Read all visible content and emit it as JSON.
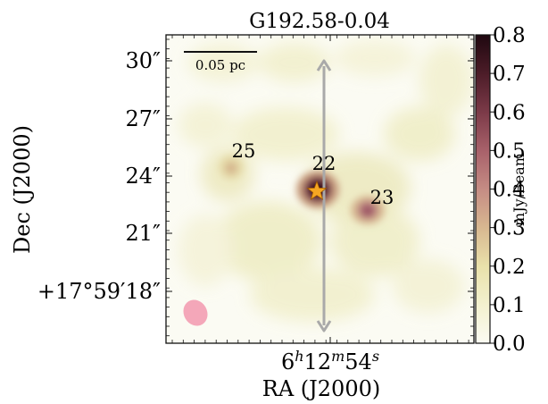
{
  "chart_data": {
    "type": "heatmap",
    "title": "G192.58-0.04",
    "xlabel": "RA (J2000)",
    "ylabel": "Dec (J2000)",
    "x_tick_labels": [
      {
        "text": "6",
        "sup": "h",
        "text2": "12",
        "sup2": "m",
        "text3": "54",
        "sup3": "s"
      }
    ],
    "y_tick_labels": [
      "30″",
      "27″",
      "24″",
      "21″",
      "+17°59′18″"
    ],
    "colorbar": {
      "label": "mJy/Beam",
      "range": [
        0.0,
        0.8
      ],
      "ticks": [
        "0.0",
        "0.1",
        "0.2",
        "0.3",
        "0.4",
        "0.5",
        "0.6",
        "0.7",
        "0.8"
      ],
      "colors": [
        "#fbfbf2",
        "#f3f1cf",
        "#e9e1aa",
        "#d8b790",
        "#c58c84",
        "#a8616a",
        "#7b3a48",
        "#4c1c28",
        "#1f0810"
      ]
    },
    "scalebar_label": "0.05 pc",
    "sources": [
      {
        "label": "25",
        "peak_mjy_beam": 0.3
      },
      {
        "label": "22",
        "peak_mjy_beam": 0.8,
        "marker": "star"
      },
      {
        "label": "23",
        "peak_mjy_beam": 0.5
      }
    ],
    "beam_color": "#f4a7b9",
    "marker_color": "#f5a623",
    "arrow_color": "#a9a9a9"
  }
}
